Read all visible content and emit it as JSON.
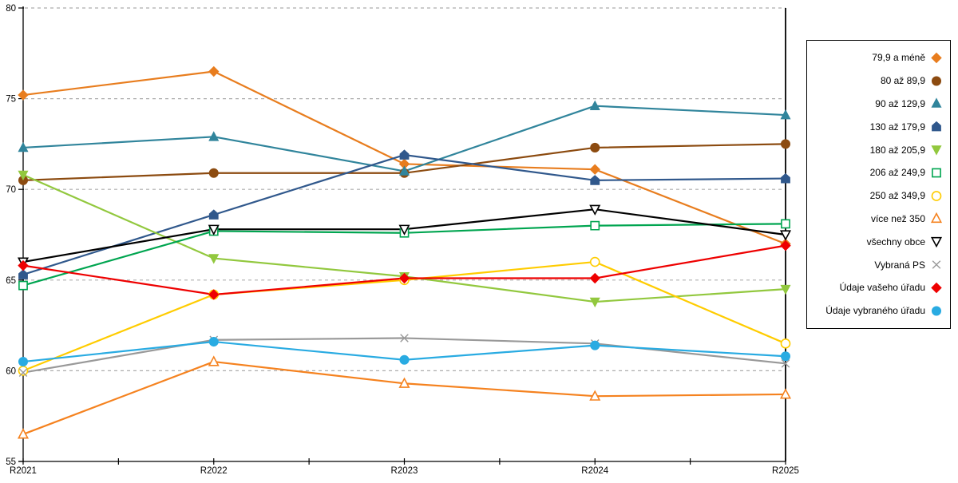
{
  "chart_data": {
    "type": "line",
    "title": "",
    "xlabel": "",
    "ylabel": "",
    "categories": [
      "R2021",
      "R2022",
      "R2023",
      "R2024",
      "R2025"
    ],
    "ylim": [
      55,
      80
    ],
    "y_ticks": [
      55,
      60,
      65,
      70,
      75,
      80
    ],
    "grid": "horizontal-dashed",
    "legend_position": "right",
    "series": [
      {
        "name": "79,9 a méně",
        "marker": "diamond",
        "filled": true,
        "color": "#E87D1E",
        "values": [
          75.2,
          76.5,
          71.4,
          71.1,
          67.0
        ]
      },
      {
        "name": "80 až 89,9",
        "marker": "circle",
        "filled": true,
        "color": "#8C4B10",
        "values": [
          70.5,
          70.9,
          70.9,
          72.3,
          72.5
        ]
      },
      {
        "name": "90 až 129,9",
        "marker": "triangle",
        "filled": true,
        "color": "#31859C",
        "values": [
          72.3,
          72.9,
          71.0,
          74.6,
          74.1
        ]
      },
      {
        "name": "130 až 179,9",
        "marker": "pentagon",
        "filled": true,
        "color": "#30588C",
        "values": [
          65.3,
          68.6,
          71.9,
          70.5,
          70.6
        ]
      },
      {
        "name": "180 až 205,9",
        "marker": "triangle-down",
        "filled": true,
        "color": "#92C83E",
        "values": [
          70.8,
          66.2,
          65.2,
          63.8,
          64.5
        ]
      },
      {
        "name": "206 až 249,9",
        "marker": "square",
        "filled": false,
        "color": "#00A550",
        "values": [
          64.7,
          67.7,
          67.6,
          68.0,
          68.1
        ]
      },
      {
        "name": "250 až 349,9",
        "marker": "circle",
        "filled": false,
        "color": "#FFCC00",
        "values": [
          60.0,
          64.2,
          65.0,
          66.0,
          61.5
        ]
      },
      {
        "name": "více než 350",
        "marker": "triangle",
        "filled": false,
        "color": "#F5821F",
        "values": [
          56.5,
          60.5,
          59.3,
          58.6,
          58.7
        ]
      },
      {
        "name": "všechny obce",
        "marker": "triangle-down",
        "filled": false,
        "color": "#000000",
        "values": [
          66.0,
          67.8,
          67.8,
          68.9,
          67.5
        ]
      },
      {
        "name": "Vybraná PS",
        "marker": "x",
        "filled": false,
        "color": "#999999",
        "values": [
          59.9,
          61.7,
          61.8,
          61.5,
          60.4
        ]
      },
      {
        "name": "Údaje vašeho úřadu",
        "marker": "diamond",
        "filled": true,
        "color": "#EE0000",
        "values": [
          65.8,
          64.2,
          65.1,
          65.1,
          66.9
        ]
      },
      {
        "name": "Údaje vybraného úřadu",
        "marker": "circle",
        "filled": true,
        "color": "#29ABE2",
        "values": [
          60.5,
          61.6,
          60.6,
          61.4,
          60.8
        ]
      }
    ]
  },
  "colors": {
    "background": "#FFFFFF",
    "gridline": "#ADADAD",
    "axis": "#000000",
    "legend_border": "#000000"
  }
}
